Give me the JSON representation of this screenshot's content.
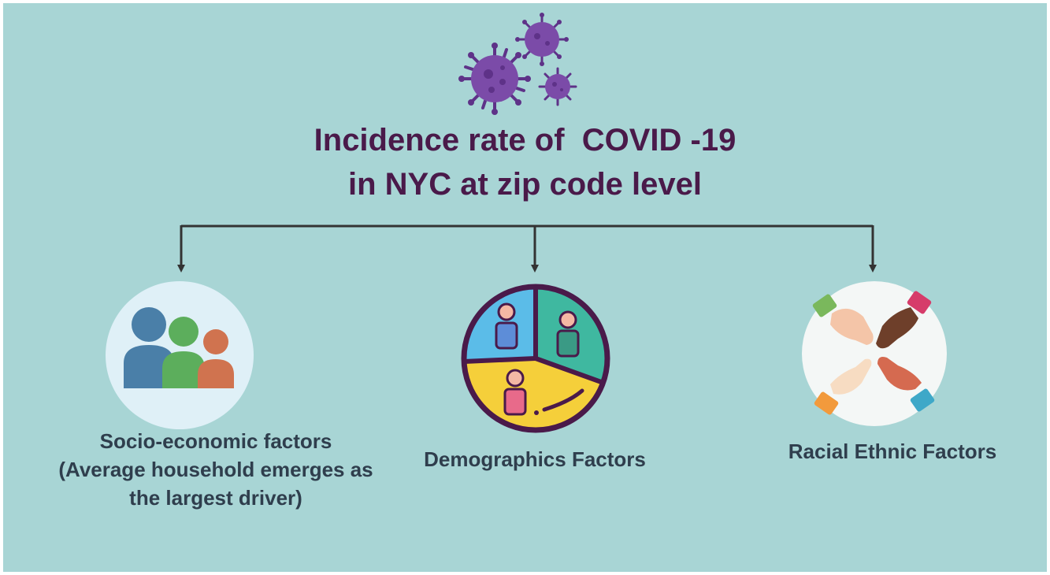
{
  "title": {
    "line1": "Incidence rate of  COVID -19",
    "line2": "in NYC at zip code level"
  },
  "branches": [
    {
      "icon": "family-icon",
      "label_lines": [
        "Socio-economic factors",
        "(Average household emerges as",
        "the largest driver)"
      ]
    },
    {
      "icon": "demographics-pie-icon",
      "label_lines": [
        "Demographics Factors"
      ]
    },
    {
      "icon": "diverse-hands-icon",
      "label_lines": [
        "Racial Ethnic Factors"
      ]
    }
  ],
  "colors": {
    "background": "#a8d5d5",
    "title": "#4a1a4a",
    "label": "#2f3e4d",
    "connector": "#333333",
    "virus": "#6a3d8f"
  }
}
